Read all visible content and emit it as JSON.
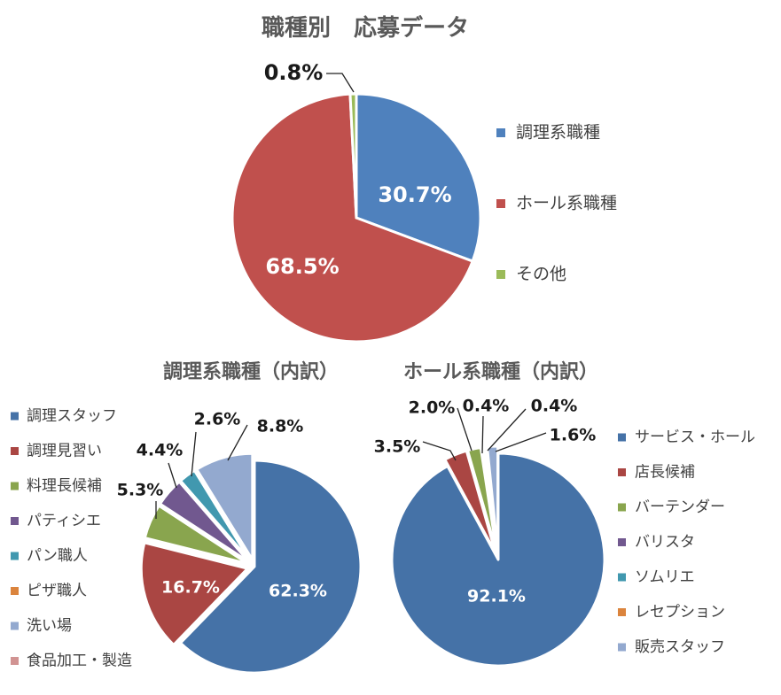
{
  "chart_data": [
    {
      "type": "pie",
      "title": "職種別　応募データ",
      "categories": [
        "調理系職種",
        "ホール系職種",
        "その他"
      ],
      "values": [
        30.7,
        68.5,
        0.8
      ],
      "labels": [
        "30.7%",
        "68.5%",
        "0.8%"
      ],
      "colors": [
        "#4F81BD",
        "#C0504D",
        "#9BBB59"
      ],
      "legend": "right"
    },
    {
      "type": "pie",
      "title": "調理系職種（内訳）",
      "categories": [
        "調理スタッフ",
        "調理見習い",
        "料理長候補",
        "パティシエ",
        "パン職人",
        "ピザ職人",
        "洗い場",
        "食品加工・製造"
      ],
      "values": [
        62.3,
        16.7,
        5.3,
        4.4,
        2.6,
        0,
        8.8,
        0
      ],
      "labels": [
        "62.3%",
        "16.7%",
        "5.3%",
        "4.4%",
        "2.6%",
        "",
        "8.8%",
        ""
      ],
      "colors": [
        "#4572A7",
        "#AA4643",
        "#89A54E",
        "#71588F",
        "#4198AF",
        "#DB843D",
        "#93A9CF",
        "#D19392"
      ],
      "legend": "left"
    },
    {
      "type": "pie",
      "title": "ホール系職種（内訳）",
      "categories": [
        "サービス・ホール",
        "店長候補",
        "バーテンダー",
        "バリスタ",
        "ソムリエ",
        "レセプション",
        "販売スタッフ"
      ],
      "values": [
        92.1,
        3.5,
        2.0,
        0.4,
        0.4,
        0,
        1.6
      ],
      "labels": [
        "92.1%",
        "3.5%",
        "2.0%",
        "0.4%",
        "0.4%",
        "",
        "1.6%"
      ],
      "colors": [
        "#4572A7",
        "#AA4643",
        "#89A54E",
        "#71588F",
        "#4198AF",
        "#DB843D",
        "#93A9CF"
      ],
      "legend": "right"
    }
  ]
}
